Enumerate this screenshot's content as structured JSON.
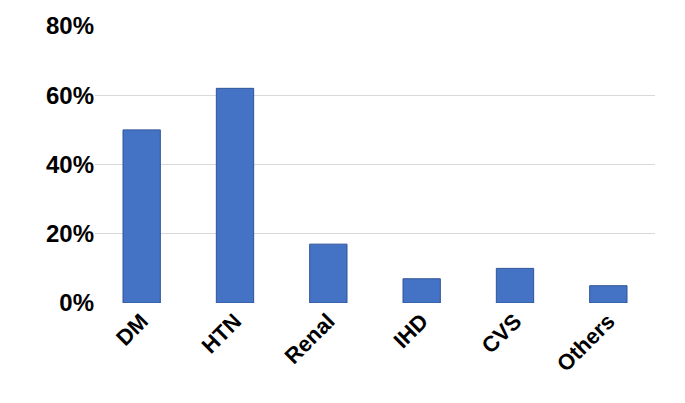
{
  "chart_data": {
    "type": "bar",
    "categories": [
      "DM",
      "HTN",
      "Renal",
      "IHD",
      "CVS",
      "Others"
    ],
    "values": [
      50,
      62,
      17,
      7,
      10,
      5
    ],
    "color": "#4472c4",
    "ylim": [
      0,
      80
    ],
    "yticks": [
      {
        "value": 0,
        "label": "0%"
      },
      {
        "value": 20,
        "label": "20%"
      },
      {
        "value": 40,
        "label": "40%"
      },
      {
        "value": 60,
        "label": "60%"
      },
      {
        "value": 80,
        "label": "80%"
      }
    ],
    "grid": true
  }
}
